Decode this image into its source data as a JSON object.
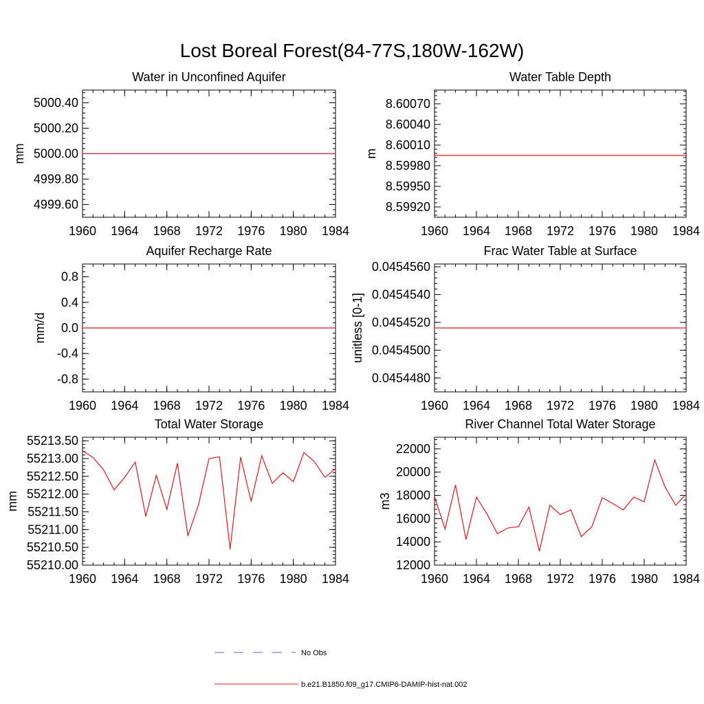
{
  "figure": {
    "title": "Lost Boreal Forest(84-77S,180W-162W)",
    "series_color": "#e8141c",
    "obs_color": "#5b63c9"
  },
  "legend": {
    "placement": "bottom-center",
    "entries": [
      {
        "label": "No Obs",
        "style": "dashed",
        "color": "#5b63c9"
      },
      {
        "label": "b.e21.B1850.f09_g17.CMIP6-DAMIP-hist-nat.002",
        "style": "solid",
        "color": "#e8141c"
      }
    ]
  },
  "chart_data": [
    {
      "type": "line",
      "title": "Water in Unconfined Aquifer",
      "xlabel": "",
      "ylabel": "mm",
      "xlim": [
        1960,
        1984
      ],
      "ylim": [
        4999.5,
        5000.5
      ],
      "xticks": [
        1960,
        1964,
        1968,
        1972,
        1976,
        1980,
        1984
      ],
      "yticks": [
        4999.6,
        4999.8,
        5000.0,
        5000.2,
        5000.4
      ],
      "ytick_labels": [
        "4999.60",
        "4999.80",
        "5000.00",
        "5000.20",
        "5000.40"
      ],
      "x": [
        1960,
        1984
      ],
      "series": [
        {
          "values": [
            5000.0,
            5000.0
          ]
        }
      ]
    },
    {
      "type": "line",
      "title": "Water Table Depth",
      "xlabel": "",
      "ylabel": "m",
      "xlim": [
        1960,
        1984
      ],
      "ylim": [
        8.59905,
        8.6009
      ],
      "xticks": [
        1960,
        1964,
        1968,
        1972,
        1976,
        1980,
        1984
      ],
      "yticks": [
        8.5992,
        8.5995,
        8.5998,
        8.6001,
        8.6004,
        8.6007
      ],
      "ytick_labels": [
        "8.59920",
        "8.59950",
        "8.59980",
        "8.60010",
        "8.60040",
        "8.60070"
      ],
      "x": [
        1960,
        1984
      ],
      "series": [
        {
          "values": [
            8.59995,
            8.59995
          ]
        }
      ]
    },
    {
      "type": "line",
      "title": "Aquifer Recharge Rate",
      "xlabel": "",
      "ylabel": "mm/d",
      "xlim": [
        1960,
        1984
      ],
      "ylim": [
        -1.0,
        1.0
      ],
      "xticks": [
        1960,
        1964,
        1968,
        1972,
        1976,
        1980,
        1984
      ],
      "yticks": [
        -0.8,
        -0.4,
        0.0,
        0.4,
        0.8
      ],
      "ytick_labels": [
        "-0.8",
        "-0.4",
        "0.0",
        "0.4",
        "0.8"
      ],
      "x": [
        1960,
        1984
      ],
      "series": [
        {
          "values": [
            0.0,
            0.0
          ]
        }
      ]
    },
    {
      "type": "line",
      "title": "Frac Water Table at Surface",
      "xlabel": "",
      "ylabel": "unitless [0-1]",
      "xlim": [
        1960,
        1984
      ],
      "ylim": [
        0.045447,
        0.0454562
      ],
      "xticks": [
        1960,
        1964,
        1968,
        1972,
        1976,
        1980,
        1984
      ],
      "yticks": [
        0.045448,
        0.04545,
        0.045452,
        0.045454,
        0.045456
      ],
      "ytick_labels": [
        "0.0454480",
        "0.0454500",
        "0.0454520",
        "0.0454540",
        "0.0454560"
      ],
      "x": [
        1960,
        1984
      ],
      "series": [
        {
          "values": [
            0.0454516,
            0.0454516
          ]
        }
      ]
    },
    {
      "type": "line",
      "title": "Total Water Storage",
      "xlabel": "",
      "ylabel": "mm",
      "xlim": [
        1960,
        1984
      ],
      "ylim": [
        55210.0,
        55213.6
      ],
      "xticks": [
        1960,
        1964,
        1968,
        1972,
        1976,
        1980,
        1984
      ],
      "yticks": [
        55210.0,
        55210.5,
        55211.0,
        55211.5,
        55212.0,
        55212.5,
        55213.0,
        55213.5
      ],
      "ytick_labels": [
        "55210.00",
        "55210.50",
        "55211.00",
        "55211.50",
        "55212.00",
        "55212.50",
        "55213.00",
        "55213.50"
      ],
      "x": [
        1960,
        1961,
        1962,
        1963,
        1964,
        1965,
        1966,
        1967,
        1968,
        1969,
        1970,
        1971,
        1972,
        1973,
        1974,
        1975,
        1976,
        1977,
        1978,
        1979,
        1980,
        1981,
        1982,
        1983,
        1984
      ],
      "series": [
        {
          "values": [
            55213.22,
            55213.03,
            55212.68,
            55212.12,
            55212.47,
            55212.9,
            55211.37,
            55212.53,
            55211.57,
            55212.87,
            55210.82,
            55211.7,
            55213.0,
            55213.05,
            55210.45,
            55213.04,
            55211.79,
            55213.08,
            55212.3,
            55212.6,
            55212.35,
            55213.17,
            55212.91,
            55212.47,
            55212.72
          ]
        }
      ]
    },
    {
      "type": "line",
      "title": "River Channel Total Water Storage",
      "xlabel": "",
      "ylabel": "m3",
      "xlim": [
        1960,
        1984
      ],
      "ylim": [
        12000,
        23000
      ],
      "xticks": [
        1960,
        1964,
        1968,
        1972,
        1976,
        1980,
        1984
      ],
      "yticks": [
        12000,
        14000,
        16000,
        18000,
        20000,
        22000
      ],
      "ytick_labels": [
        "12000",
        "14000",
        "16000",
        "18000",
        "20000",
        "22000"
      ],
      "x": [
        1960,
        1961,
        1962,
        1963,
        1964,
        1965,
        1966,
        1967,
        1968,
        1969,
        1970,
        1971,
        1972,
        1973,
        1974,
        1975,
        1976,
        1977,
        1978,
        1979,
        1980,
        1981,
        1982,
        1983,
        1984
      ],
      "series": [
        {
          "values": [
            17900,
            15100,
            18900,
            14200,
            17850,
            16400,
            14700,
            15200,
            15300,
            17000,
            13200,
            17150,
            16350,
            16750,
            14450,
            15300,
            17800,
            17300,
            16750,
            17850,
            17450,
            21050,
            18700,
            17150,
            18100
          ]
        }
      ]
    }
  ]
}
